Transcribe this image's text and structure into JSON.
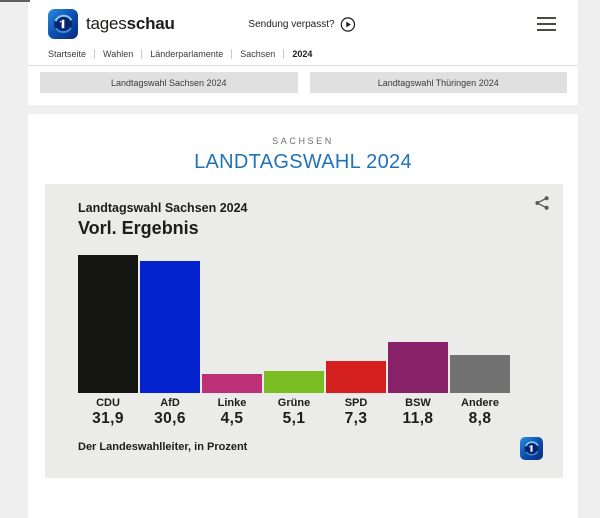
{
  "header": {
    "brand_light": "tages",
    "brand_bold": "schau",
    "watch_label": "Sendung verpasst?"
  },
  "breadcrumb": {
    "items": [
      "Startseite",
      "Wahlen",
      "Länderparlamente",
      "Sachsen",
      "2024"
    ]
  },
  "nav_buttons": [
    {
      "label": "Landtagswahl Sachsen 2024"
    },
    {
      "label": "Landtagswahl Thüringen 2024"
    }
  ],
  "page": {
    "kicker": "SACHSEN",
    "title": "LANDTAGSWAHL 2024",
    "title_color": "#1f73b9"
  },
  "chart_card": {
    "title": "Landtagswahl Sachsen 2024",
    "subtitle": "Vorl. Ergebnis",
    "source": "Der Landeswahlleiter, in Prozent"
  },
  "chart_data": {
    "type": "bar",
    "title": "Landtagswahl Sachsen 2024 – Vorl. Ergebnis",
    "categories": [
      "CDU",
      "AfD",
      "Linke",
      "Grüne",
      "SPD",
      "BSW",
      "Andere"
    ],
    "values": [
      31.9,
      30.6,
      4.5,
      5.1,
      7.3,
      11.8,
      8.8
    ],
    "value_labels": [
      "31,9",
      "30,6",
      "4,5",
      "5,1",
      "7,3",
      "11,8",
      "8,8"
    ],
    "unit": "%",
    "ylim": [
      0,
      32
    ],
    "grid": false,
    "legend": false,
    "colors": {
      "CDU": "#141413",
      "AfD": "#0423ce",
      "Linke": "#be3075",
      "Grüne": "#7bbe23",
      "SPD": "#d41f1f",
      "BSW": "#872168",
      "Andere": "#727272"
    },
    "source": "Der Landeswahlleiter, in Prozent"
  },
  "icons": {
    "brand": "tagesschau-globe-icon",
    "play": "play-icon",
    "menu": "hamburger-icon",
    "share": "share-icon"
  },
  "colors": {
    "page_bg": "#efefef",
    "card_bg": "#ffffff",
    "chart_bg": "#ebebe9",
    "accent_blue": "#1f73b9",
    "button_bg": "#e0e0e0"
  }
}
